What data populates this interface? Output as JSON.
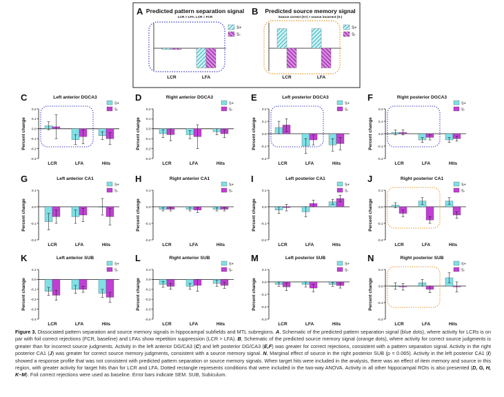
{
  "colors": {
    "s_plus": "#7fe0e6",
    "s_minus": "#c13fd4",
    "sep_box": "#4a4ad0",
    "src_box": "#eb9a30",
    "hatch_plus": "#35b0bb",
    "hatch_minus": "#8b1898"
  },
  "legend": {
    "s_plus": "S+",
    "s_minus": "S-"
  },
  "ylabel": "Percent change",
  "categories": [
    "LCR",
    "LFA",
    "Hits"
  ],
  "schematic": {
    "A": {
      "letter": "A",
      "title": "Predicted pattern separation signal",
      "subtitle": "LCR > LFA; LCR = FCR",
      "categories": [
        "LCR",
        "LFA"
      ]
    },
    "B": {
      "letter": "B",
      "title": "Predicted source memory signal",
      "subtitle": "Source correct (S+) > source incorrect (S-)",
      "categories": [
        "LCR",
        "LFA"
      ]
    }
  },
  "chart_data": [
    {
      "panel": "A",
      "type": "bar",
      "title": "Predicted pattern separation signal",
      "categories": [
        "LCR",
        "LFA"
      ],
      "series": [
        {
          "name": "S+",
          "values": [
            -0.02,
            -0.3
          ]
        },
        {
          "name": "S-",
          "values": [
            -0.02,
            -0.3
          ]
        }
      ],
      "ylim": [
        -0.4,
        0.4
      ]
    },
    {
      "panel": "B",
      "type": "bar",
      "title": "Predicted source memory signal",
      "categories": [
        "LCR",
        "LFA"
      ],
      "series": [
        {
          "name": "S+",
          "values": [
            0.3,
            0.3
          ]
        },
        {
          "name": "S-",
          "values": [
            -0.3,
            -0.3
          ]
        }
      ],
      "ylim": [
        -0.4,
        0.4
      ]
    },
    {
      "panel": "C",
      "type": "bar",
      "title": "Left anterior DGCA3",
      "ylabel": "Percent change",
      "categories": [
        "LCR",
        "LFA",
        "Hits"
      ],
      "ylim": [
        -0.3,
        0.2
      ],
      "ticks": [
        0.2,
        0.1,
        0.0,
        -0.1,
        -0.2,
        -0.3
      ],
      "tick_labels": [
        "0.2",
        "0.1",
        "0.0",
        "-0.1",
        "-0.2",
        "-0.3"
      ],
      "series": [
        {
          "name": "S+",
          "values": [
            0.03,
            -0.11,
            -0.07
          ],
          "errors": [
            0.04,
            0.05,
            0.04
          ]
        },
        {
          "name": "S-",
          "values": [
            0.02,
            -0.08,
            -0.1
          ],
          "errors": [
            0.12,
            0.07,
            0.06
          ]
        }
      ],
      "highlight": {
        "style": "blue",
        "categories": [
          "LCR",
          "LFA"
        ]
      }
    },
    {
      "panel": "D",
      "type": "bar",
      "title": "Right anterior DGCA3",
      "ylabel": "Percent change",
      "categories": [
        "LCR",
        "LFA",
        "Hits"
      ],
      "ylim": [
        -0.3,
        0.2
      ],
      "ticks": [
        0.2,
        0.1,
        0.0,
        -0.1,
        -0.2,
        -0.3
      ],
      "tick_labels": [
        "0.2",
        "0.1",
        "0.0",
        "-0.1",
        "-0.2",
        "-0.3"
      ],
      "series": [
        {
          "name": "S+",
          "values": [
            -0.05,
            -0.06,
            -0.03
          ],
          "errors": [
            0.04,
            0.04,
            0.03
          ]
        },
        {
          "name": "S-",
          "values": [
            -0.06,
            -0.08,
            -0.05
          ],
          "errors": [
            0.06,
            0.12,
            0.04
          ]
        }
      ]
    },
    {
      "panel": "E",
      "type": "bar",
      "title": "Left posterior DGCA3",
      "ylabel": "Percent change",
      "categories": [
        "LCR",
        "LFA",
        "Hits"
      ],
      "ylim": [
        -0.2,
        0.2
      ],
      "ticks": [
        0.2,
        0.1,
        0.0,
        -0.1,
        -0.2
      ],
      "tick_labels": [
        "0.2",
        "0.1",
        "0.0",
        "-0.1",
        "-0.2"
      ],
      "series": [
        {
          "name": "S+",
          "values": [
            0.05,
            -0.1,
            -0.09
          ],
          "errors": [
            0.05,
            0.06,
            0.05
          ]
        },
        {
          "name": "S-",
          "values": [
            0.07,
            -0.05,
            -0.08
          ],
          "errors": [
            0.05,
            0.04,
            0.05
          ]
        }
      ],
      "highlight": {
        "style": "blue",
        "categories": [
          "LCR",
          "LFA"
        ]
      }
    },
    {
      "panel": "F",
      "type": "bar",
      "title": "Right posterior DGCA3",
      "ylabel": "Percent change",
      "categories": [
        "LCR",
        "LFA",
        "Hits"
      ],
      "ylim": [
        -0.2,
        0.2
      ],
      "ticks": [
        0.2,
        0.1,
        0.0,
        -0.1,
        -0.2
      ],
      "tick_labels": [
        "0.2",
        "0.1",
        "0.0",
        "-0.1",
        "-0.2"
      ],
      "series": [
        {
          "name": "S+",
          "values": [
            0.01,
            -0.05,
            -0.05
          ],
          "errors": [
            0.02,
            0.02,
            0.02
          ]
        },
        {
          "name": "S-",
          "values": [
            0.01,
            -0.03,
            -0.04
          ],
          "errors": [
            0.02,
            0.02,
            0.02
          ]
        }
      ],
      "highlight": {
        "style": "blue",
        "categories": [
          "LCR",
          "LFA"
        ]
      }
    },
    {
      "panel": "G",
      "type": "bar",
      "title": "Left anterior CA1",
      "ylabel": "Percent change",
      "categories": [
        "LCR",
        "LFA",
        "Hits"
      ],
      "ylim": [
        -0.2,
        0.1
      ],
      "ticks": [
        0.1,
        0.0,
        -0.1,
        -0.2
      ],
      "tick_labels": [
        "0.1",
        "0.0",
        "-0.1",
        "-0.2"
      ],
      "series": [
        {
          "name": "S+",
          "values": [
            -0.09,
            -0.06,
            0.0
          ],
          "errors": [
            0.05,
            0.04,
            0.05
          ]
        },
        {
          "name": "S-",
          "values": [
            -0.06,
            -0.05,
            -0.06
          ],
          "errors": [
            0.04,
            0.04,
            0.05
          ]
        }
      ]
    },
    {
      "panel": "H",
      "type": "bar",
      "title": "Right anterior CA1",
      "ylabel": "Percent change",
      "categories": [
        "LCR",
        "LFA",
        "Hits"
      ],
      "ylim": [
        -0.2,
        0.1
      ],
      "ticks": [
        0.1,
        0.0,
        -0.1,
        -0.2
      ],
      "tick_labels": [
        "0.1",
        "0.0",
        "-0.1",
        "-0.2"
      ],
      "series": [
        {
          "name": "S+",
          "values": [
            -0.015,
            -0.015,
            -0.015
          ],
          "errors": [
            0.01,
            0.01,
            0.01
          ]
        },
        {
          "name": "S-",
          "values": [
            -0.015,
            -0.02,
            -0.015
          ],
          "errors": [
            0.01,
            0.015,
            0.01
          ]
        }
      ]
    },
    {
      "panel": "I",
      "type": "bar",
      "title": "Left posterior CA1",
      "ylabel": "Percent change",
      "categories": [
        "LCR",
        "LFA",
        "Hits"
      ],
      "ylim": [
        -0.2,
        0.1
      ],
      "ticks": [
        0.1,
        0.0,
        -0.1,
        -0.2
      ],
      "tick_labels": [
        "0.1",
        "0.0",
        "-0.1",
        "-0.2"
      ],
      "series": [
        {
          "name": "S+",
          "values": [
            -0.02,
            -0.03,
            0.03
          ],
          "errors": [
            0.02,
            0.03,
            0.015
          ]
        },
        {
          "name": "S-",
          "values": [
            -0.005,
            0.02,
            0.05
          ],
          "errors": [
            0.02,
            0.02,
            0.02
          ]
        }
      ]
    },
    {
      "panel": "J",
      "type": "bar",
      "title": "Right posterior CA1",
      "ylabel": "Percent change",
      "categories": [
        "LCR",
        "LFA",
        "Hits"
      ],
      "ylim": [
        -0.2,
        0.1
      ],
      "ticks": [
        0.1,
        0.0,
        -0.1,
        -0.2
      ],
      "tick_labels": [
        "0.1",
        "0.0",
        "-0.1",
        "-0.2"
      ],
      "series": [
        {
          "name": "S+",
          "values": [
            0.01,
            0.035,
            0.035
          ],
          "errors": [
            0.015,
            0.02,
            0.02
          ]
        },
        {
          "name": "S-",
          "values": [
            -0.04,
            -0.08,
            -0.05
          ],
          "errors": [
            0.02,
            0.02,
            0.02
          ]
        }
      ],
      "highlight": {
        "style": "orange",
        "categories": [
          "LCR",
          "LFA"
        ]
      }
    },
    {
      "panel": "K",
      "type": "bar",
      "title": "Left anterior SUB",
      "ylabel": "Percent change",
      "categories": [
        "LCR",
        "LFA",
        "Hits"
      ],
      "ylim": [
        -0.4,
        0.1
      ],
      "ticks": [
        0.1,
        0.0,
        -0.1,
        -0.2,
        -0.3,
        -0.4
      ],
      "tick_labels": [
        "0.1",
        "0.0",
        "-0.1",
        "-0.2",
        "-0.3",
        "-0.4"
      ],
      "series": [
        {
          "name": "S+",
          "values": [
            -0.12,
            -0.1,
            -0.14
          ],
          "errors": [
            0.04,
            0.04,
            0.04
          ]
        },
        {
          "name": "S-",
          "values": [
            -0.16,
            -0.1,
            -0.18
          ],
          "errors": [
            0.05,
            0.03,
            0.05
          ]
        }
      ]
    },
    {
      "panel": "L",
      "type": "bar",
      "title": "Right anterior SUB",
      "ylabel": "Percent change",
      "categories": [
        "LCR",
        "LFA",
        "Hits"
      ],
      "ylim": [
        -0.4,
        0.1
      ],
      "ticks": [
        0.1,
        0.0,
        -0.1,
        -0.2,
        -0.3,
        -0.4
      ],
      "tick_labels": [
        "0.1",
        "0.0",
        "-0.1",
        "-0.2",
        "-0.3",
        "-0.4"
      ],
      "series": [
        {
          "name": "S+",
          "values": [
            -0.05,
            -0.07,
            -0.04
          ],
          "errors": [
            0.03,
            0.03,
            0.03
          ]
        },
        {
          "name": "S-",
          "values": [
            -0.07,
            -0.06,
            -0.06
          ],
          "errors": [
            0.03,
            0.06,
            0.03
          ]
        }
      ]
    },
    {
      "panel": "M",
      "type": "bar",
      "title": "Left posterior SUB",
      "ylabel": "Percent change",
      "categories": [
        "LCR",
        "LFA",
        "Hits"
      ],
      "ylim": [
        -0.3,
        0.1
      ],
      "ticks": [
        0.1,
        0.0,
        -0.1,
        -0.2,
        -0.3
      ],
      "tick_labels": [
        "0.1",
        "0.0",
        "-0.1",
        "-0.2",
        "-0.3"
      ],
      "series": [
        {
          "name": "S+",
          "values": [
            -0.02,
            -0.02,
            -0.02
          ],
          "errors": [
            0.015,
            0.02,
            0.015
          ]
        },
        {
          "name": "S-",
          "values": [
            -0.04,
            -0.05,
            -0.03
          ],
          "errors": [
            0.03,
            0.03,
            0.02
          ]
        }
      ]
    },
    {
      "panel": "N",
      "type": "bar",
      "title": "Right posterior SUB",
      "ylabel": "Percent change",
      "categories": [
        "LCR",
        "LFA",
        "Hits"
      ],
      "ylim": [
        -0.2,
        0.1
      ],
      "ticks": [
        0.1,
        0.0,
        -0.1,
        -0.2
      ],
      "tick_labels": [
        "0.1",
        "0.0",
        "-0.1",
        "-0.2"
      ],
      "series": [
        {
          "name": "S+",
          "values": [
            0.0,
            0.02,
            0.05
          ],
          "errors": [
            0.02,
            0.02,
            0.03
          ]
        },
        {
          "name": "S-",
          "values": [
            -0.005,
            -0.02,
            -0.005
          ],
          "errors": [
            0.02,
            0.02,
            0.03
          ]
        }
      ],
      "highlight": {
        "style": "orange",
        "categories": [
          "LCR",
          "LFA"
        ]
      }
    }
  ],
  "caption": {
    "label": "Figure 3.",
    "parts": [
      {
        "t": "Dissociated pattern separation and source memory signals in hippocampal subfields and MTL subregions. ",
        "b": false
      },
      {
        "t": "A",
        "b": true
      },
      {
        "t": ", Schematic of the predicted pattern separation signal (blue dots), where activity for LCRs is on par with foil correct rejections (FCR, baseline) and LFAs show repetition suppression (LCR > LFA). ",
        "b": false
      },
      {
        "t": "B",
        "b": true
      },
      {
        "t": ", Schematic of the predicted source memory signal (orange dots), where activity for correct source judgments is greater than for incorrect source judgments. Activity in the left anterior DG/CA3 (",
        "b": false
      },
      {
        "t": "C",
        "b": true
      },
      {
        "t": ") and left posterior DG/CA3 (",
        "b": false
      },
      {
        "t": "E,F",
        "b": true
      },
      {
        "t": ") was greater for correct rejections, consistent with a pattern separation signal. Activity in the right posterior CA1 (",
        "b": false
      },
      {
        "t": "J",
        "b": true
      },
      {
        "t": ") was greater for correct source memory judgments, consistent with a source memory signal. ",
        "b": false
      },
      {
        "t": "N",
        "b": true
      },
      {
        "t": ", Marginal effect of source in the right posterior SUB (p = 0.065). Activity in the left posterior CA1 (",
        "b": false
      },
      {
        "t": "I",
        "b": true
      },
      {
        "t": ") showed a response profile that was not consistent with predicted pattern separation or source memory signals. When target hits were included in the analysis, there was an effect of item memory and source in this region, with greater activity for target hits than for LCR and LFA. Dotted rectangle represents conditions that were included in the two-way ANOVA. Activity in all other hippocampal ROIs is also presented (",
        "b": false
      },
      {
        "t": "D, G, H, K–M",
        "b": true
      },
      {
        "t": "). Foil correct rejections were used as baseline. Error bars indicate SEM. SUB, Subiculum.",
        "b": false
      }
    ]
  }
}
